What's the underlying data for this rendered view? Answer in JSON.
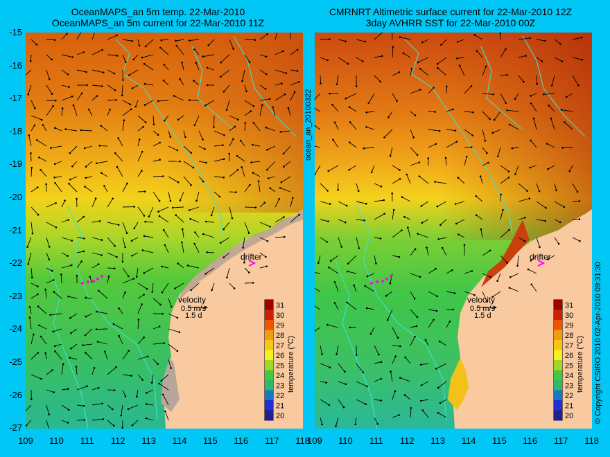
{
  "left_panel": {
    "title_line1": "OceanMAPS_an 5m temp. 22-Mar-2010",
    "title_line2": "OceanMAPS_an 5m current for 22-Mar-2010 11Z"
  },
  "right_panel": {
    "title_line1": "CMRNRT Altimetric surface current for 22-Mar-2010 12Z",
    "title_line2": "3day AVHRR SST for 22-Mar-2010 00Z"
  },
  "side_label_left": "ocean_an_20100322",
  "side_label_right": "© Copyright CSIRO 2010   02-Apr-2010 09:31:30",
  "drifter_label": "drifter",
  "velocity_label": "velocity",
  "velocity_scale": "0.5 m/s",
  "velocity_time": "1.5 d",
  "colorbar_title": "temperature (°C)",
  "colorbar_ticks": [
    "31",
    "30",
    "29",
    "28",
    "27",
    "26",
    "25",
    "24",
    "23",
    "22",
    "21",
    "20"
  ],
  "lat_ticks": [
    "-15",
    "-16",
    "-17",
    "-18",
    "-19",
    "-20",
    "-21",
    "-22",
    "-23",
    "-24",
    "-25",
    "-26",
    "-27"
  ],
  "lon_ticks": [
    "109",
    "110",
    "111",
    "112",
    "113",
    "114",
    "115",
    "116",
    "117",
    "118"
  ],
  "colors": {
    "background": "#00c7f5",
    "land": "#f9c9a0",
    "coast": "#40e0d0",
    "drifter": "#ff00ff"
  }
}
